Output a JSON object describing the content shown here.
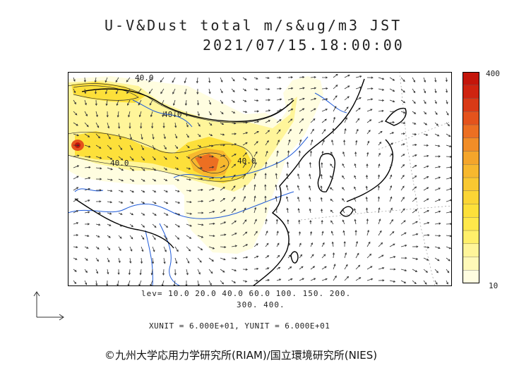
{
  "header": {
    "title": "U-V&Dust total m/s&ug/m3 JST",
    "timestamp": "2021/07/15.18:00:00"
  },
  "map": {
    "contour_labels": [
      "40.0",
      "40.0",
      "40.0",
      "40.0"
    ],
    "colors": {
      "ocean": "#ffffff",
      "coast": "#000000",
      "rivers": "#1e5ad8",
      "wind": "#333333"
    }
  },
  "colorbar": {
    "max_label": "400",
    "min_label": "10",
    "colors": [
      "#fffde0",
      "#fff9b8",
      "#fff59a",
      "#ffef6a",
      "#ffe84a",
      "#fde03a",
      "#fbd535",
      "#f9c831",
      "#f7b82e",
      "#f4a52b",
      "#f18d27",
      "#ec6f22",
      "#e4531c",
      "#d93a16",
      "#cf2410",
      "#c4160b"
    ]
  },
  "legend": {
    "levels_line1": "lev= 10.0 20.0 40.0 60.0 100. 150. 200.",
    "levels_line2": "300. 400.",
    "units": "XUNIT = 6.000E+01, YUNIT = 6.000E+01"
  },
  "footer": {
    "copyright": "©九州大学応用力学研究所(RIAM)/国立環境研究所(NIES)"
  }
}
